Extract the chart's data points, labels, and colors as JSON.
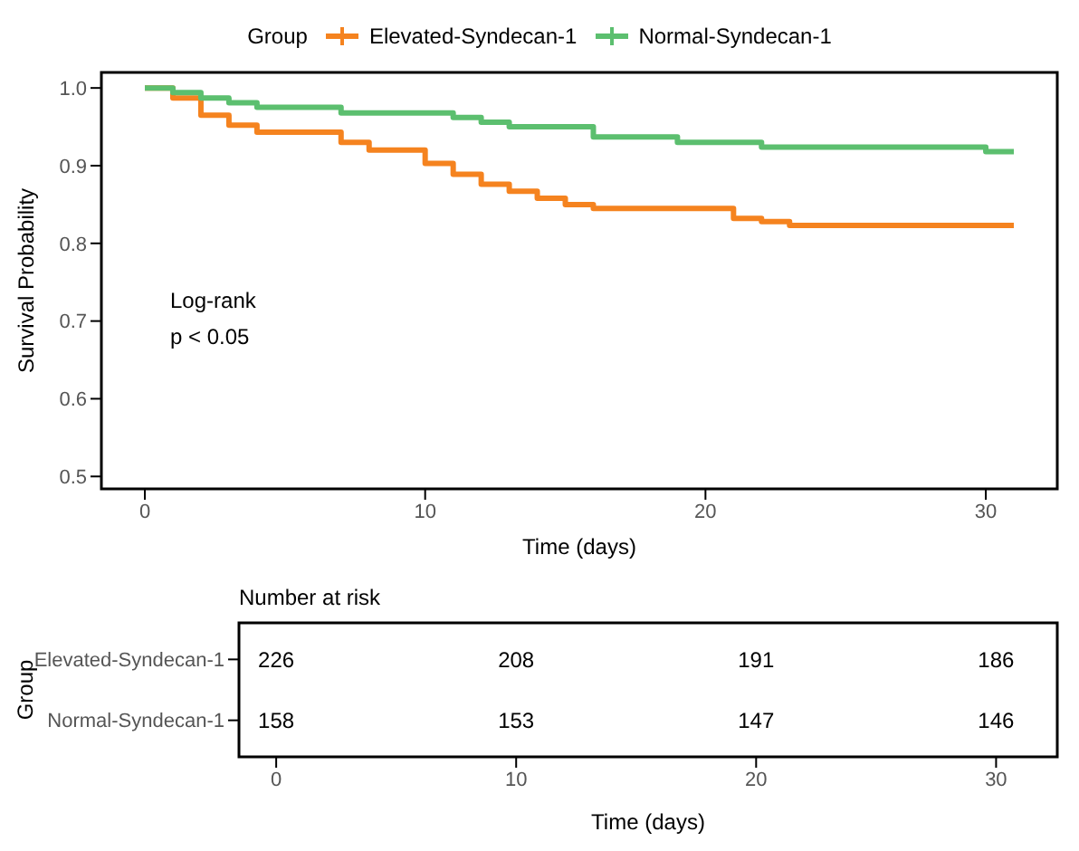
{
  "chart_data": [
    {
      "type": "step",
      "xlabel": "Time (days)",
      "ylabel": "Survival Probability",
      "legend_title": "Group",
      "legend": "top",
      "xlim": [
        -1.55,
        32.55
      ],
      "xticks": [
        0,
        10,
        20,
        30
      ],
      "ylim": [
        0.484,
        1.02
      ],
      "yticks": [
        0.5,
        0.6,
        0.7,
        0.8,
        0.9,
        {
          "value": 1.0,
          "label": "1.0"
        }
      ],
      "annotations": [
        "Log-rank",
        "p < 0.05"
      ],
      "series": [
        {
          "name": "Elevated-Syndecan-1",
          "color": "#f5831f",
          "x": [
            0,
            1,
            2,
            3,
            4,
            7,
            8,
            9,
            10,
            11,
            12,
            13,
            14,
            15,
            16,
            21,
            22,
            23,
            31
          ],
          "values": [
            1.0,
            0.987,
            0.965,
            0.952,
            0.943,
            0.93,
            0.92,
            0.92,
            0.903,
            0.889,
            0.876,
            0.867,
            0.858,
            0.85,
            0.845,
            0.832,
            0.828,
            0.823,
            0.823
          ]
        },
        {
          "name": "Normal-Syndecan-1",
          "color": "#5cbf6f",
          "x": [
            0,
            1,
            2,
            3,
            4,
            7,
            11,
            12,
            13,
            16,
            19,
            22,
            30,
            31
          ],
          "values": [
            1.0,
            0.994,
            0.987,
            0.981,
            0.975,
            0.968,
            0.962,
            0.956,
            0.95,
            0.937,
            0.93,
            0.924,
            0.918,
            0.918
          ]
        }
      ]
    },
    {
      "type": "heatmap",
      "title": "Number at risk",
      "xlabel": "Time (days)",
      "ylabel": "Group",
      "data_labels": true,
      "categories": [
        "0",
        "10",
        "20",
        "30"
      ],
      "y_categories": [
        "Elevated-Syndecan-1",
        "Normal-Syndecan-1"
      ],
      "cells": [
        [
          226,
          208,
          191,
          186
        ],
        [
          158,
          153,
          147,
          146
        ]
      ]
    }
  ]
}
